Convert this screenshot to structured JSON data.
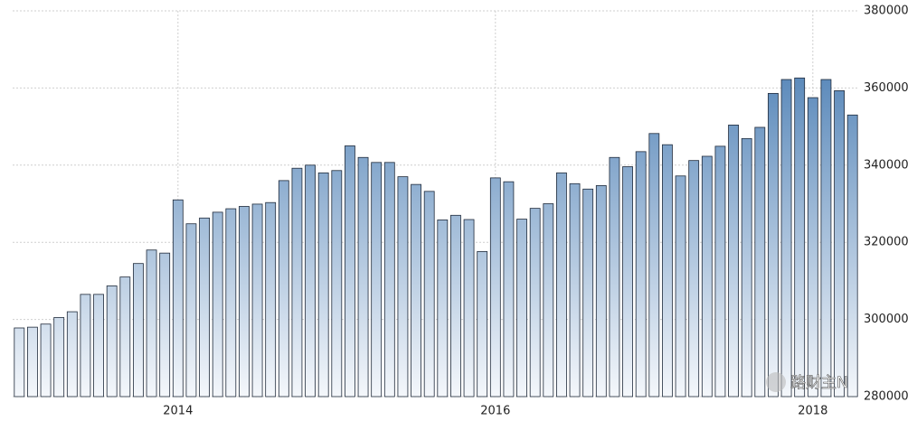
{
  "chart_data": {
    "type": "bar",
    "categories": [
      null,
      null,
      null,
      null,
      null,
      null,
      null,
      null,
      null,
      null,
      null,
      null,
      "2014",
      null,
      null,
      null,
      null,
      null,
      null,
      null,
      null,
      null,
      null,
      null,
      null,
      null,
      null,
      null,
      null,
      null,
      null,
      null,
      null,
      null,
      null,
      null,
      "2016",
      null,
      null,
      null,
      null,
      null,
      null,
      null,
      null,
      null,
      null,
      null,
      null,
      null,
      null,
      null,
      null,
      null,
      null,
      null,
      null,
      null,
      null,
      null,
      "2018",
      null,
      null,
      null
    ],
    "values": [
      297800,
      298000,
      298800,
      300500,
      302000,
      306500,
      306500,
      308700,
      311000,
      314500,
      318000,
      317200,
      331000,
      324800,
      326300,
      327800,
      328700,
      329300,
      329900,
      330300,
      336000,
      339200,
      340000,
      338000,
      338600,
      345000,
      342000,
      340700,
      340700,
      337000,
      335000,
      333200,
      325800,
      327000,
      325900,
      317600,
      336700,
      335700,
      326000,
      328800,
      330000,
      338000,
      335200,
      333800,
      334700,
      342000,
      339600,
      343500,
      348200,
      345300,
      337200,
      341200,
      342300,
      344900,
      350400,
      346900,
      349800,
      358600,
      362200,
      362600,
      357500,
      362200,
      359300,
      353000
    ],
    "color": "#3d74ae",
    "ylim": [
      280000,
      380000
    ],
    "yticks": [
      280000,
      300000,
      320000,
      340000,
      360000,
      380000
    ],
    "grid": true,
    "watermark": "路财主N"
  }
}
